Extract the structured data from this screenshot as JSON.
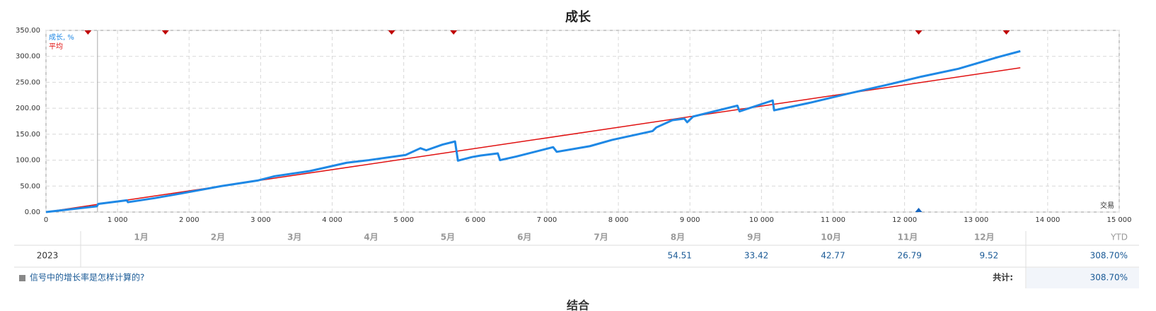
{
  "chart_data": {
    "type": "line",
    "title": "成长",
    "x_label": "交易",
    "xlim": [
      0,
      15000
    ],
    "xticks": [
      0,
      {
        "value": 1000,
        "label": "1 000"
      },
      {
        "value": 2000,
        "label": "2 000"
      },
      {
        "value": 3000,
        "label": "3 000"
      },
      {
        "value": 4000,
        "label": "4 000"
      },
      {
        "value": 5000,
        "label": "5 000"
      },
      {
        "value": 6000,
        "label": "6 000"
      },
      {
        "value": 7000,
        "label": "7 000"
      },
      {
        "value": 8000,
        "label": "8 000"
      },
      {
        "value": 9000,
        "label": "9 000"
      },
      {
        "value": 10000,
        "label": "10 000"
      },
      {
        "value": 11000,
        "label": "11 000"
      },
      {
        "value": 12000,
        "label": "12 000"
      },
      {
        "value": 13000,
        "label": "13 000"
      },
      {
        "value": 14000,
        "label": "14 000"
      },
      {
        "value": 15000,
        "label": "15 000"
      }
    ],
    "ylim": [
      0,
      350
    ],
    "yticks": [
      {
        "value": 0,
        "label": "0.00"
      },
      {
        "value": 50,
        "label": "50.00"
      },
      {
        "value": 100,
        "label": "100.00"
      },
      {
        "value": 150,
        "label": "150.00"
      },
      {
        "value": 200,
        "label": "200.00"
      },
      {
        "value": 250,
        "label": "250.00"
      },
      {
        "value": 300,
        "label": "300.00"
      },
      {
        "value": 350,
        "label": "350.00"
      }
    ],
    "grid": true,
    "legend": "top-left",
    "series": [
      {
        "name": "成长, %",
        "color": "#1e88e5",
        "x": [
          0,
          710,
          730,
          1130,
          1145,
          1525,
          1937,
          2452,
          2967,
          3194,
          3688,
          4203,
          4512,
          5027,
          5233,
          5315,
          5542,
          5717,
          5758,
          5954,
          6078,
          6315,
          6346,
          6573,
          7088,
          7139,
          7603,
          7912,
          8478,
          8530,
          8756,
          8921,
          8962,
          9045,
          9663,
          9694,
          10157,
          10177,
          10692,
          11207,
          11722,
          12237,
          12752,
          13319,
          13618
        ],
        "values": [
          0,
          11,
          15.6,
          22.7,
          19,
          27,
          37,
          50,
          61,
          69,
          79,
          95,
          100,
          110,
          123,
          119,
          130,
          136,
          99,
          106,
          109,
          113,
          100,
          107,
          125,
          116,
          127,
          139,
          156,
          163,
          177,
          180,
          173,
          184,
          205,
          194,
          215,
          196,
          211,
          228,
          244,
          261,
          276,
          299,
          310
        ]
      },
      {
        "name": "平均",
        "color": "#e01010",
        "x": [
          0,
          13618
        ],
        "values": [
          0,
          278
        ]
      }
    ],
    "divider_x": 720,
    "markers": [
      {
        "x": 587,
        "color": "#c00000",
        "position": "top"
      },
      {
        "x": 1669,
        "color": "#c00000",
        "position": "top"
      },
      {
        "x": 4831,
        "color": "#c00000",
        "position": "top"
      },
      {
        "x": 5697,
        "color": "#c00000",
        "position": "top"
      },
      {
        "x": 12197,
        "color": "#c00000",
        "position": "top"
      },
      {
        "x": 13423,
        "color": "#c00000",
        "position": "top"
      },
      {
        "x": 12197,
        "color": "#1565c0",
        "position": "bottom"
      }
    ]
  },
  "table": {
    "months": [
      "1月",
      "2月",
      "3月",
      "4月",
      "5月",
      "6月",
      "7月",
      "8月",
      "9月",
      "10月",
      "11月",
      "12月"
    ],
    "ytd_header": "YTD",
    "year": "2023",
    "values": [
      null,
      null,
      null,
      null,
      null,
      null,
      null,
      "54.51",
      "33.42",
      "42.77",
      "26.79",
      "9.52"
    ],
    "ytd": "308.70%",
    "help_link": "信号中的增长率是怎样计算的?",
    "total_label": "共计:",
    "total": "308.70%"
  },
  "next_section": "结合"
}
